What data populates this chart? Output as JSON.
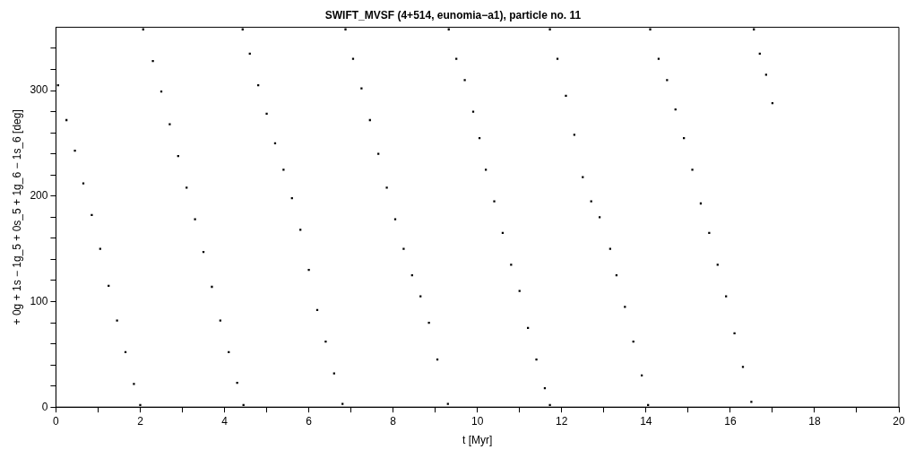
{
  "chart_data": {
    "type": "scatter",
    "title": "SWIFT_MVSF (4+514, eunomia−a1), particle no. 11",
    "xlabel": "t [Myr]",
    "ylabel": "+ 0g + 1s − 1g_5 + 0s_5 + 1g_6 − 1s_6 [deg]",
    "color": "#000000",
    "marker": "square",
    "x": [
      0.05,
      0.25,
      0.45,
      0.65,
      0.85,
      1.05,
      1.25,
      1.45,
      1.65,
      1.85,
      2.0,
      2.07,
      2.3,
      2.5,
      2.7,
      2.9,
      3.1,
      3.3,
      3.5,
      3.7,
      3.9,
      4.1,
      4.3,
      4.45,
      4.43,
      4.6,
      4.8,
      5.0,
      5.2,
      5.4,
      5.6,
      5.8,
      6.0,
      6.2,
      6.4,
      6.6,
      6.8,
      6.87,
      7.05,
      7.25,
      7.45,
      7.65,
      7.85,
      8.05,
      8.25,
      8.45,
      8.65,
      8.85,
      9.05,
      9.3,
      9.32,
      9.5,
      9.7,
      9.9,
      10.05,
      10.2,
      10.4,
      10.6,
      10.8,
      11.0,
      11.2,
      11.4,
      11.6,
      11.72,
      11.72,
      11.9,
      12.1,
      12.3,
      12.5,
      12.7,
      12.9,
      13.15,
      13.3,
      13.5,
      13.7,
      13.9,
      14.05,
      14.1,
      14.3,
      14.5,
      14.7,
      14.9,
      15.1,
      15.3,
      15.5,
      15.7,
      15.9,
      16.1,
      16.3,
      16.5,
      16.56,
      16.7,
      16.85,
      17.0
    ],
    "values": [
      305,
      272,
      243,
      212,
      182,
      150,
      115,
      82,
      52,
      22,
      2,
      358,
      328,
      299,
      268,
      238,
      208,
      178,
      147,
      114,
      82,
      52,
      23,
      2,
      358,
      335,
      305,
      278,
      250,
      225,
      198,
      168,
      130,
      92,
      62,
      32,
      3,
      358,
      330,
      302,
      272,
      240,
      208,
      178,
      150,
      125,
      105,
      80,
      45,
      3,
      358,
      330,
      310,
      280,
      255,
      225,
      195,
      165,
      135,
      110,
      75,
      45,
      18,
      2,
      358,
      330,
      295,
      258,
      218,
      195,
      180,
      150,
      125,
      95,
      62,
      30,
      2,
      358,
      330,
      310,
      282,
      255,
      225,
      193,
      165,
      135,
      105,
      70,
      38,
      5,
      358,
      335,
      315,
      288
    ],
    "xlim": [
      0,
      20
    ],
    "ylim": [
      0,
      360
    ],
    "xticks": [
      0,
      {
        "value": 1,
        "label": null
      },
      2,
      {
        "value": 3,
        "label": null
      },
      4,
      {
        "value": 5,
        "label": null
      },
      6,
      {
        "value": 7,
        "label": null
      },
      8,
      {
        "value": 9,
        "label": null
      },
      10,
      {
        "value": 11,
        "label": null
      },
      12,
      {
        "value": 13,
        "label": null
      },
      14,
      {
        "value": 15,
        "label": null
      },
      16,
      {
        "value": 17,
        "label": null
      },
      18,
      {
        "value": 19,
        "label": null
      },
      20
    ],
    "yticks": [
      0,
      {
        "value": 20,
        "label": null
      },
      {
        "value": 40,
        "label": null
      },
      {
        "value": 60,
        "label": null
      },
      {
        "value": 80,
        "label": null
      },
      100,
      {
        "value": 120,
        "label": null
      },
      {
        "value": 140,
        "label": null
      },
      {
        "value": 160,
        "label": null
      },
      {
        "value": 180,
        "label": null
      },
      200,
      {
        "value": 220,
        "label": null
      },
      {
        "value": 240,
        "label": null
      },
      {
        "value": 260,
        "label": null
      },
      {
        "value": 280,
        "label": null
      },
      300,
      {
        "value": 320,
        "label": null
      },
      {
        "value": 340,
        "label": null
      }
    ]
  }
}
